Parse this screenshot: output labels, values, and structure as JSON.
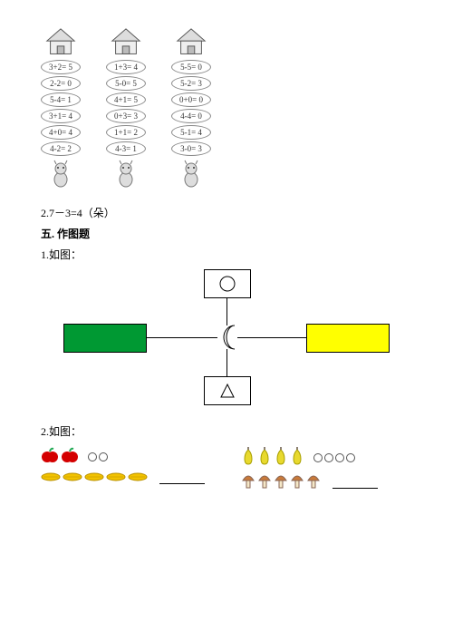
{
  "columns": [
    {
      "equations": [
        "3+2= 5",
        "2-2= 0",
        "5-4= 1",
        "3+1= 4",
        "4+0= 4",
        "4-2= 2"
      ]
    },
    {
      "equations": [
        "1+3= 4",
        "5-0= 5",
        "4+1= 5",
        "0+3= 3",
        "1+1= 2",
        "4-3= 1"
      ]
    },
    {
      "equations": [
        "5-5= 0",
        "5-2= 3",
        "0+0= 0",
        "4-4= 0",
        "5-1= 4",
        "3-0= 3"
      ]
    }
  ],
  "line_a": "2.7－3=4（朵）",
  "heading": "五. 作图题",
  "fig1_label": "1.如图：",
  "fig2_label": "2.如图：",
  "colors": {
    "green": "#009933",
    "yellow": "#ffff00",
    "apple": "#d40000",
    "corn": "#f2c200",
    "pear": "#e8d92e",
    "mushroom_cap": "#c97a3a"
  },
  "fig2_groups": [
    {
      "items": [
        {
          "type": "apple",
          "count": 2,
          "circles": 2
        },
        {
          "type": "corn",
          "count": 5,
          "circles": 0
        }
      ]
    },
    {
      "items": [
        {
          "type": "pear",
          "count": 4,
          "circles": 4
        },
        {
          "type": "mushroom",
          "count": 5,
          "circles": 0
        }
      ]
    }
  ]
}
